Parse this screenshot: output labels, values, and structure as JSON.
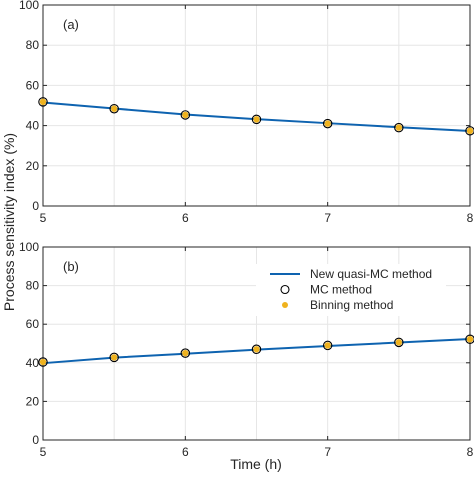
{
  "figure": {
    "xlabel": "Time (h)",
    "ylabel": "Process sensitivity index (%)"
  },
  "colors": {
    "line": "#0e63b0",
    "binning": "#efb21e",
    "mc_edge": "#000000",
    "grid": "#e6e6e6",
    "axis": "#262626"
  },
  "legend": {
    "placement": "upper-right of panel (b)",
    "entries": [
      {
        "label": "New quasi-MC method",
        "marker": "line"
      },
      {
        "label": "MC method",
        "marker": "open-circle"
      },
      {
        "label": "Binning method",
        "marker": "filled-dot"
      }
    ]
  },
  "chart_data": [
    {
      "type": "line",
      "panel_label": "(a)",
      "xlim": [
        5,
        8
      ],
      "ylim": [
        0,
        100
      ],
      "xticks": [
        "5",
        "6",
        "7",
        "8"
      ],
      "yticks": [
        "0",
        "20",
        "40",
        "60",
        "80",
        "100"
      ],
      "grid": true,
      "series": [
        {
          "name": "New quasi-MC method",
          "kind": "line",
          "x": [
            5,
            5.5,
            6,
            6.5,
            7,
            7.5,
            8
          ],
          "y": [
            51.5,
            48.5,
            45.5,
            43.2,
            41.2,
            39.2,
            37.3
          ]
        },
        {
          "name": "MC method",
          "kind": "open-circle",
          "x": [
            5,
            5.5,
            6,
            6.5,
            7,
            7.5,
            8
          ],
          "y": [
            51.8,
            48.4,
            45.3,
            43.1,
            41.0,
            39.0,
            37.4
          ]
        },
        {
          "name": "Binning method",
          "kind": "filled-dot",
          "x": [
            5,
            5.5,
            6,
            6.5,
            7,
            7.5,
            8
          ],
          "y": [
            51.8,
            48.4,
            45.3,
            43.1,
            41.0,
            39.0,
            37.4
          ]
        }
      ]
    },
    {
      "type": "line",
      "panel_label": "(b)",
      "xlim": [
        5,
        8
      ],
      "ylim": [
        0,
        100
      ],
      "xticks": [
        "5",
        "6",
        "7",
        "8"
      ],
      "yticks": [
        "0",
        "20",
        "40",
        "60",
        "80",
        "100"
      ],
      "grid": true,
      "series": [
        {
          "name": "New quasi-MC method",
          "kind": "line",
          "x": [
            5,
            5.5,
            6,
            6.5,
            7,
            7.5,
            8
          ],
          "y": [
            39.8,
            42.7,
            44.7,
            46.8,
            48.7,
            50.5,
            52.3
          ]
        },
        {
          "name": "MC method",
          "kind": "open-circle",
          "x": [
            5,
            5.5,
            6,
            6.5,
            7,
            7.5,
            8
          ],
          "y": [
            40.4,
            42.8,
            45.0,
            47.0,
            49.0,
            50.6,
            52.2
          ]
        },
        {
          "name": "Binning method",
          "kind": "filled-dot",
          "x": [
            5,
            5.5,
            6,
            6.5,
            7,
            7.5,
            8
          ],
          "y": [
            40.4,
            42.8,
            45.0,
            47.0,
            49.0,
            50.6,
            52.2
          ]
        }
      ]
    }
  ]
}
